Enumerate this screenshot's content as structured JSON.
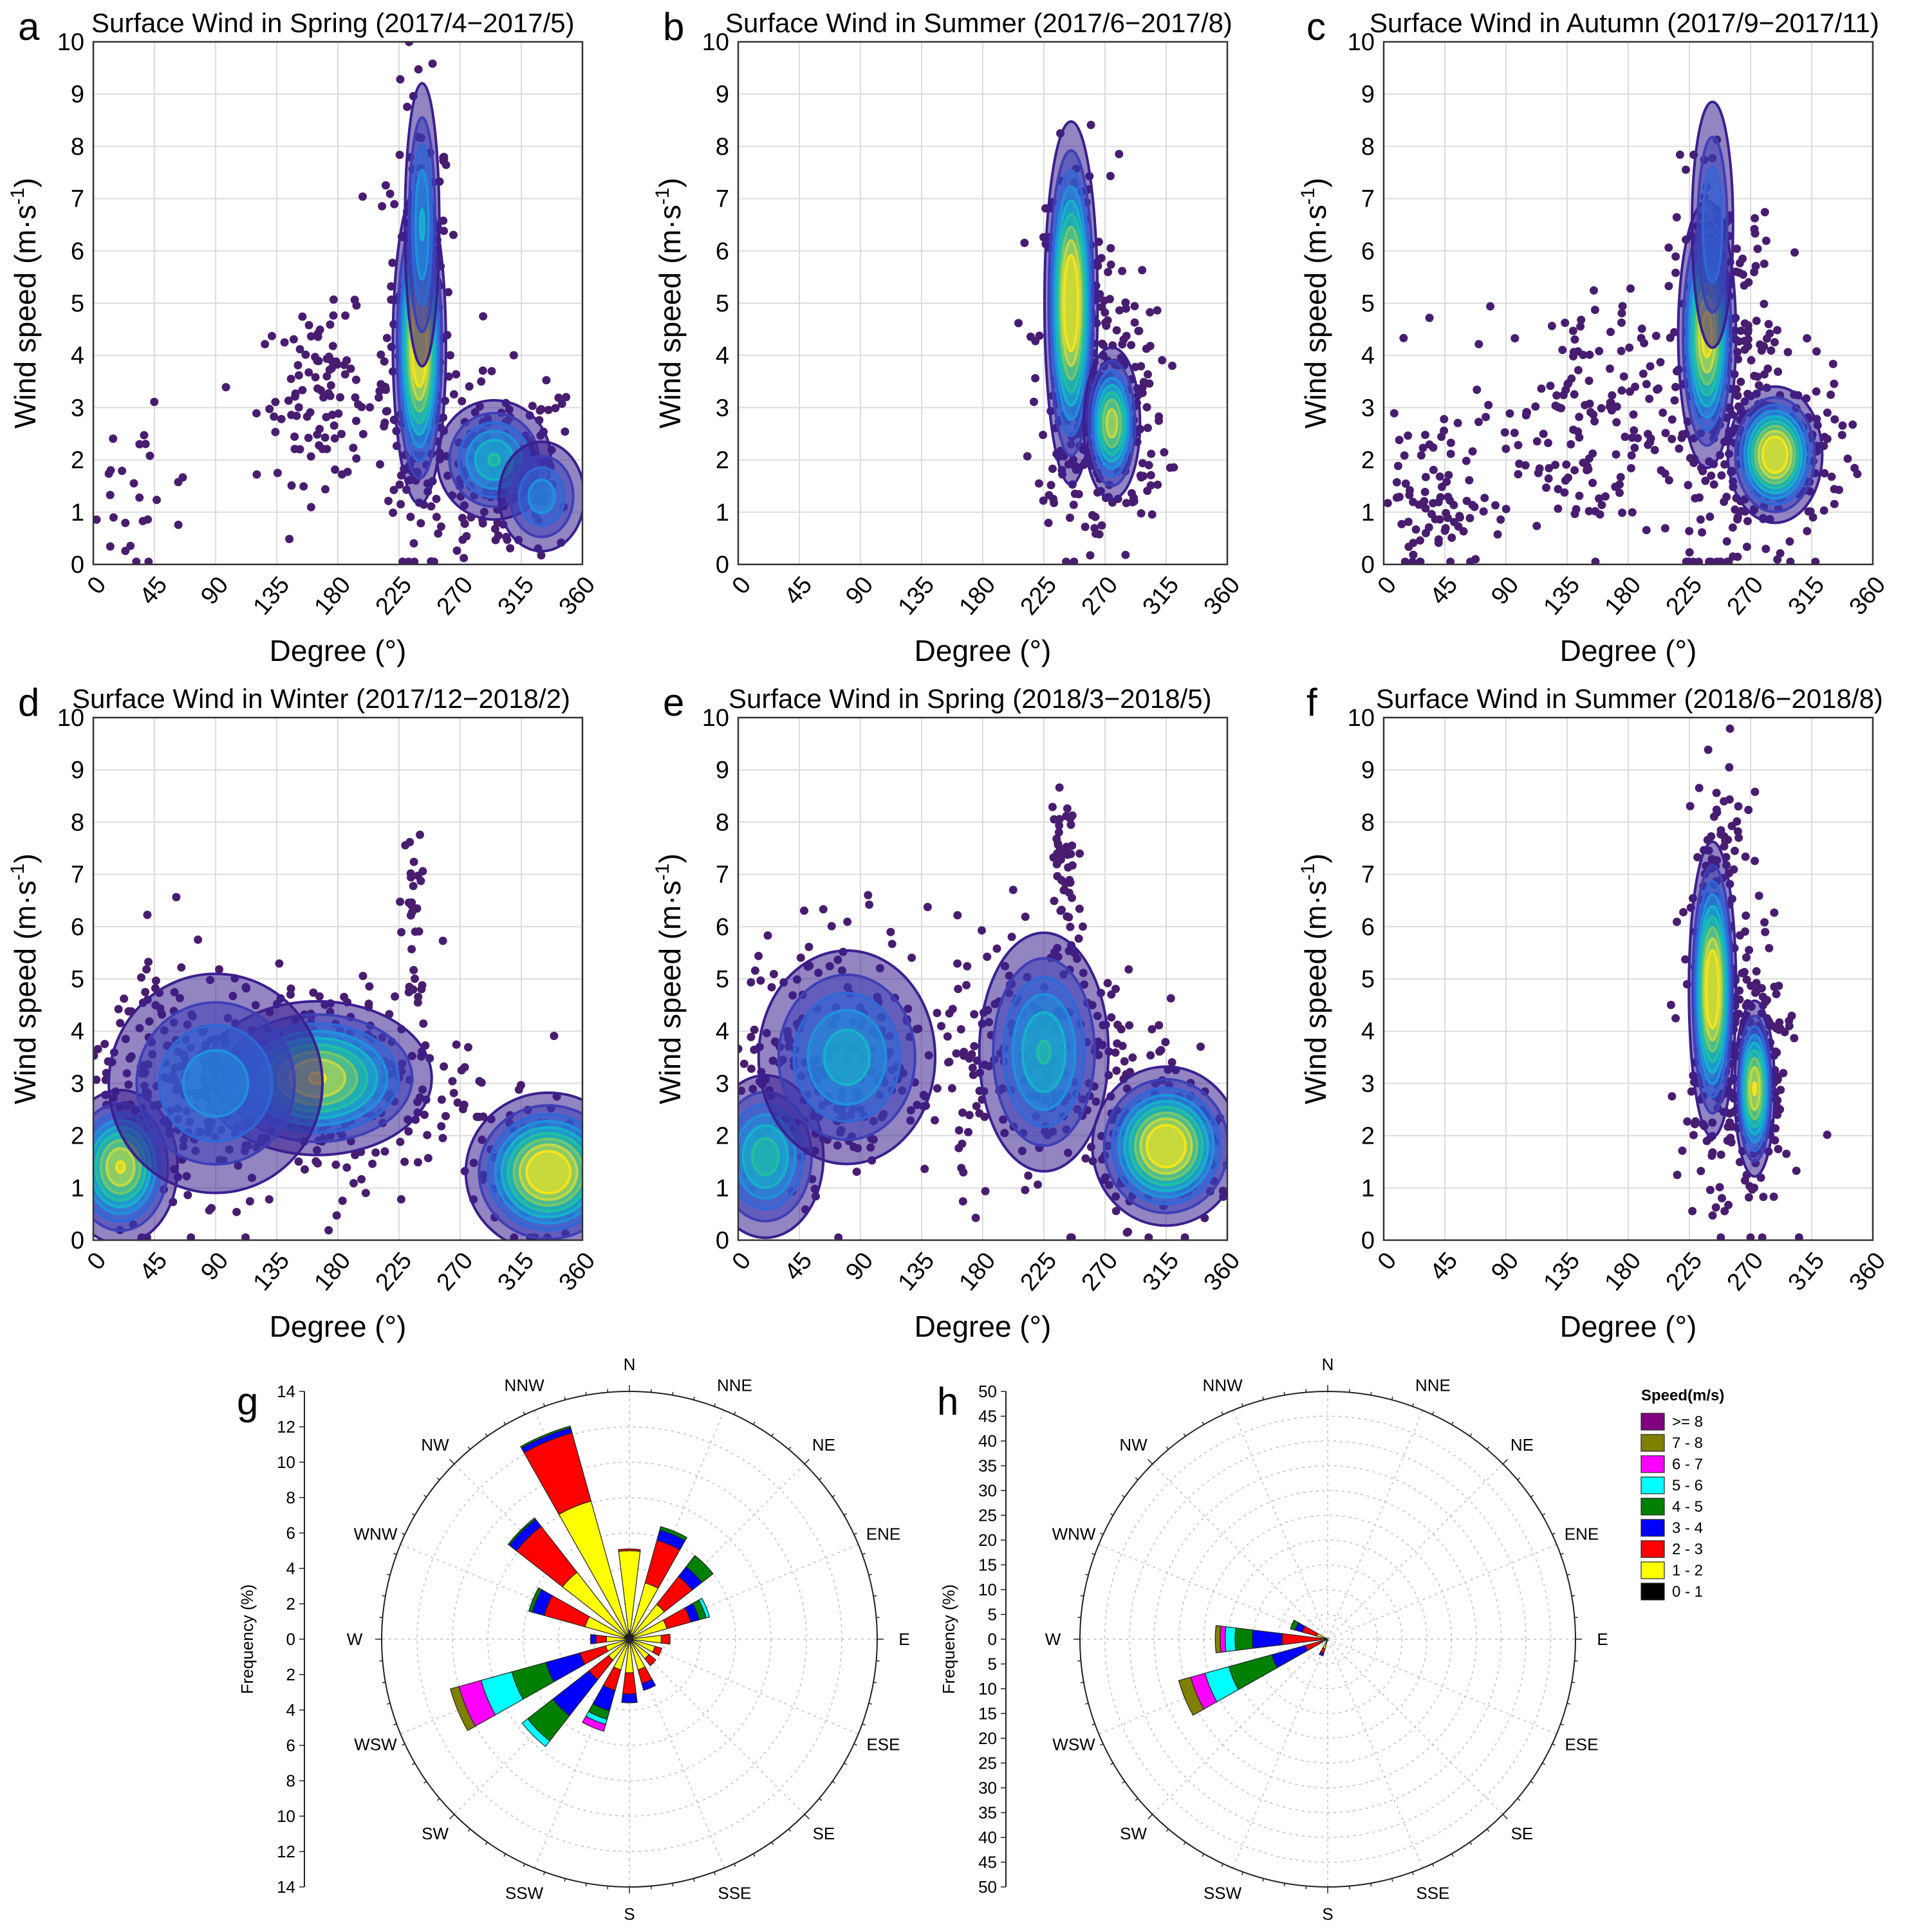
{
  "colors": {
    "point": "#481d6f",
    "density": [
      "#3b1f8f",
      "#3d3fb6",
      "#2f67d8",
      "#1f91dd",
      "#16b3c9",
      "#22c0a0",
      "#74c86b",
      "#c3d845",
      "#f6e41a"
    ],
    "speed_bins": [
      "#000000",
      "#ffff00",
      "#ff0000",
      "#0000ff",
      "#008000",
      "#00ffff",
      "#ff00ff",
      "#808000",
      "#800080"
    ]
  },
  "panels": [
    {
      "letter": "a",
      "title": "Surface Wind in Spring (2017/4−2017/5)"
    },
    {
      "letter": "b",
      "title": "Surface Wind in Summer (2017/6−2017/8)"
    },
    {
      "letter": "c",
      "title": "Surface Wind in Autumn (2017/9−2017/11)"
    },
    {
      "letter": "d",
      "title": "Surface Wind in Winter (2017/12−2018/2)"
    },
    {
      "letter": "e",
      "title": "Surface Wind in Spring (2018/3−2018/5)"
    },
    {
      "letter": "f",
      "title": "Surface Wind in Summer (2018/6−2018/8)"
    }
  ],
  "axis": {
    "xlabel": "Degree (°)",
    "ylabel_main": "Wind speed (m·s",
    "ylabel_sup": "-1",
    "ylabel_end": ")",
    "xticks": [
      "0",
      "45",
      "90",
      "135",
      "180",
      "225",
      "270",
      "315",
      "360"
    ],
    "yticks": [
      "0",
      "1",
      "2",
      "3",
      "4",
      "5",
      "6",
      "7",
      "8",
      "9",
      "10"
    ]
  },
  "roses": [
    {
      "letter": "g",
      "ylabel": "Frequency (%)",
      "ticks": [
        "14",
        "12",
        "10",
        "8",
        "6",
        "4",
        "2",
        "0",
        "2",
        "4",
        "6",
        "8",
        "10",
        "12",
        "14"
      ]
    },
    {
      "letter": "h",
      "ylabel": "Frequency (%)",
      "ticks": [
        "50",
        "45",
        "40",
        "35",
        "30",
        "25",
        "20",
        "15",
        "10",
        "5",
        "0",
        "5",
        "10",
        "15",
        "20",
        "25",
        "30",
        "35",
        "40",
        "45",
        "50"
      ]
    }
  ],
  "directions": [
    "N",
    "NNE",
    "NE",
    "ENE",
    "E",
    "ESE",
    "SE",
    "SSE",
    "S",
    "SSW",
    "SW",
    "WSW",
    "W",
    "WNW",
    "NW",
    "NNW"
  ],
  "legend": {
    "title": "Speed(m/s)",
    "items": [
      ">= 8",
      "7 - 8",
      "6 - 7",
      "5 - 6",
      "4 - 5",
      "3 - 4",
      "2 - 3",
      "1 - 2",
      "0 - 1"
    ]
  },
  "chart_data": [
    {
      "type": "scatter",
      "title": "Surface Wind in Spring (2017/4−2017/5)",
      "xlabel": "Degree (°)",
      "ylabel": "Wind speed (m·s-1)",
      "xlim": [
        0,
        360
      ],
      "ylim": [
        0,
        10
      ],
      "grid": true,
      "density_peaks": [
        {
          "x": 240,
          "y": 4.2,
          "sx": 9,
          "sy": 1.4,
          "w": 1.0
        },
        {
          "x": 242,
          "y": 6.5,
          "sx": 7,
          "sy": 1.5,
          "w": 0.45
        },
        {
          "x": 295,
          "y": 2.0,
          "sx": 22,
          "sy": 0.6,
          "w": 0.55
        },
        {
          "x": 330,
          "y": 1.3,
          "sx": 18,
          "sy": 0.6,
          "w": 0.4
        }
      ],
      "clusters": [
        {
          "x": 240,
          "y": 4.5,
          "sx": 12,
          "sy": 2.2,
          "n": 220
        },
        {
          "x": 170,
          "y": 3.2,
          "sx": 25,
          "sy": 0.8,
          "n": 110
        },
        {
          "x": 300,
          "y": 1.8,
          "sx": 30,
          "sy": 0.9,
          "n": 160
        },
        {
          "x": 30,
          "y": 1.2,
          "sx": 25,
          "sy": 0.8,
          "n": 30
        }
      ]
    },
    {
      "type": "scatter",
      "title": "Surface Wind in Summer (2017/6−2017/8)",
      "xlabel": "Degree (°)",
      "ylabel": "Wind speed (m·s-1)",
      "xlim": [
        0,
        360
      ],
      "ylim": [
        0,
        10
      ],
      "grid": true,
      "density_peaks": [
        {
          "x": 245,
          "y": 5.0,
          "sx": 9,
          "sy": 1.6,
          "w": 1.0
        },
        {
          "x": 275,
          "y": 2.7,
          "sx": 10,
          "sy": 0.7,
          "w": 0.8
        }
      ],
      "clusters": [
        {
          "x": 250,
          "y": 4.2,
          "sx": 15,
          "sy": 1.8,
          "n": 260
        },
        {
          "x": 275,
          "y": 2.8,
          "sx": 20,
          "sy": 1.0,
          "n": 180
        }
      ]
    },
    {
      "type": "scatter",
      "title": "Surface Wind in Autumn (2017/9−2017/11)",
      "xlabel": "Degree (°)",
      "ylabel": "Wind speed (m·s-1)",
      "xlim": [
        0,
        360
      ],
      "ylim": [
        0,
        10
      ],
      "grid": true,
      "density_peaks": [
        {
          "x": 238,
          "y": 4.4,
          "sx": 10,
          "sy": 1.2,
          "w": 0.9
        },
        {
          "x": 288,
          "y": 2.1,
          "sx": 16,
          "sy": 0.6,
          "w": 1.0
        },
        {
          "x": 242,
          "y": 6.5,
          "sx": 9,
          "sy": 1.4,
          "w": 0.35
        }
      ],
      "clusters": [
        {
          "x": 250,
          "y": 3.8,
          "sx": 20,
          "sy": 1.8,
          "n": 260
        },
        {
          "x": 290,
          "y": 2.0,
          "sx": 25,
          "sy": 0.8,
          "n": 180
        },
        {
          "x": 150,
          "y": 2.8,
          "sx": 45,
          "sy": 1.2,
          "n": 180
        },
        {
          "x": 30,
          "y": 1.2,
          "sx": 25,
          "sy": 0.8,
          "n": 90
        }
      ]
    },
    {
      "type": "scatter",
      "title": "Surface Wind in Winter (2017/12−2018/2)",
      "xlabel": "Degree (°)",
      "ylabel": "Wind speed (m·s-1)",
      "xlim": [
        0,
        360
      ],
      "ylim": [
        0,
        10
      ],
      "grid": true,
      "density_peaks": [
        {
          "x": 20,
          "y": 1.4,
          "sx": 20,
          "sy": 0.7,
          "w": 0.85
        },
        {
          "x": 165,
          "y": 3.1,
          "sx": 40,
          "sy": 0.7,
          "w": 0.85
        },
        {
          "x": 335,
          "y": 1.3,
          "sx": 28,
          "sy": 0.7,
          "w": 1.0
        },
        {
          "x": 90,
          "y": 3.0,
          "sx": 45,
          "sy": 1.2,
          "w": 0.4
        }
      ],
      "clusters": [
        {
          "x": 60,
          "y": 3.0,
          "sx": 40,
          "sy": 1.3,
          "n": 220
        },
        {
          "x": 170,
          "y": 3.0,
          "sx": 55,
          "sy": 1.0,
          "n": 250
        },
        {
          "x": 330,
          "y": 1.4,
          "sx": 25,
          "sy": 0.7,
          "n": 150
        },
        {
          "x": 235,
          "y": 5.8,
          "sx": 5,
          "sy": 1.0,
          "n": 30
        }
      ]
    },
    {
      "type": "scatter",
      "title": "Surface Wind in Spring (2018/3−2018/5)",
      "xlabel": "Degree (°)",
      "ylabel": "Wind speed (m·s-1)",
      "xlim": [
        0,
        360
      ],
      "ylim": [
        0,
        10
      ],
      "grid": true,
      "density_peaks": [
        {
          "x": 20,
          "y": 1.6,
          "sx": 22,
          "sy": 0.8,
          "w": 0.6
        },
        {
          "x": 315,
          "y": 1.8,
          "sx": 25,
          "sy": 0.7,
          "w": 1.0
        },
        {
          "x": 225,
          "y": 3.6,
          "sx": 25,
          "sy": 1.2,
          "w": 0.55
        },
        {
          "x": 80,
          "y": 3.5,
          "sx": 35,
          "sy": 1.1,
          "w": 0.5
        }
      ],
      "clusters": [
        {
          "x": 70,
          "y": 3.5,
          "sx": 40,
          "sy": 1.3,
          "n": 220
        },
        {
          "x": 220,
          "y": 3.5,
          "sx": 40,
          "sy": 1.3,
          "n": 220
        },
        {
          "x": 320,
          "y": 1.8,
          "sx": 25,
          "sy": 0.7,
          "n": 140
        },
        {
          "x": 240,
          "y": 7.0,
          "sx": 5,
          "sy": 1.0,
          "n": 50
        }
      ]
    },
    {
      "type": "scatter",
      "title": "Surface Wind in Summer (2018/6−2018/8)",
      "xlabel": "Degree (°)",
      "ylabel": "Wind speed (m·s-1)",
      "xlim": [
        0,
        360
      ],
      "ylim": [
        0,
        10
      ],
      "grid": true,
      "density_peaks": [
        {
          "x": 242,
          "y": 4.8,
          "sx": 8,
          "sy": 1.3,
          "w": 1.0
        },
        {
          "x": 273,
          "y": 2.9,
          "sx": 7,
          "sy": 0.8,
          "w": 0.85
        }
      ],
      "clusters": [
        {
          "x": 245,
          "y": 4.8,
          "sx": 12,
          "sy": 1.8,
          "n": 260
        },
        {
          "x": 275,
          "y": 3.2,
          "sx": 12,
          "sy": 1.3,
          "n": 200
        }
      ]
    },
    {
      "type": "rose",
      "bins": [
        ">= 8",
        "7 - 8",
        "6 - 7",
        "5 - 6",
        "4 - 5",
        "3 - 4",
        "2 - 3",
        "1 - 2",
        "0 - 1"
      ],
      "rmax": 14,
      "stacks": [
        {
          "dir": "N",
          "segs": [
            0.5,
            4.5,
            0.1
          ]
        },
        {
          "dir": "NNE",
          "segs": [
            0.3,
            3.0,
            2.5,
            0.6,
            0.2
          ]
        },
        {
          "dir": "NE",
          "segs": [
            0.3,
            2.2,
            2.0,
            0.7,
            0.8
          ]
        },
        {
          "dir": "ENE",
          "segs": [
            0.2,
            2.0,
            1.4,
            0.5,
            0.4,
            0.2
          ]
        },
        {
          "dir": "E",
          "segs": [
            0.2,
            1.6,
            0.5
          ]
        },
        {
          "dir": "ESE",
          "segs": [
            0.2,
            1.3,
            0.4
          ]
        },
        {
          "dir": "SE",
          "segs": [
            0.2,
            1.2,
            0.5
          ]
        },
        {
          "dir": "SSE",
          "segs": [
            0.2,
            1.6,
            0.8,
            0.4
          ]
        },
        {
          "dir": "S",
          "segs": [
            0.2,
            1.7,
            1.2,
            0.5
          ]
        },
        {
          "dir": "SSW",
          "segs": [
            0.2,
            1.6,
            1.2,
            1.2,
            0.5,
            0.3,
            0.4
          ]
        },
        {
          "dir": "SW",
          "segs": [
            0.2,
            1.3,
            1.4,
            2.6,
            1.8,
            0.4
          ]
        },
        {
          "dir": "WSW",
          "segs": [
            0.2,
            1.2,
            1.5,
            2.0,
            2.0,
            1.8,
            1.3,
            0.5
          ]
        },
        {
          "dir": "W",
          "segs": [
            0.2,
            1.1,
            0.6,
            0.3
          ]
        },
        {
          "dir": "WNW",
          "segs": [
            0.3,
            2.3,
            2.4,
            0.7,
            0.2
          ]
        },
        {
          "dir": "NW",
          "segs": [
            0.3,
            4.5,
            3.3,
            0.5,
            0.1
          ]
        },
        {
          "dir": "NNW",
          "segs": [
            0.3,
            7.8,
            4.0,
            0.3,
            0.1
          ]
        }
      ]
    },
    {
      "type": "rose",
      "bins": [
        ">= 8",
        "7 - 8",
        "6 - 7",
        "5 - 6",
        "4 - 5",
        "3 - 4",
        "2 - 3",
        "1 - 2",
        "0 - 1"
      ],
      "rmax": 50,
      "stacks": [
        {
          "dir": "SSW",
          "segs": [
            0.5,
            1.5,
            1.0,
            0.5
          ]
        },
        {
          "dir": "WSW",
          "segs": [
            0.2,
            1.0,
            3.5,
            7.0,
            9.0,
            5.0,
            3.0,
            2.5
          ]
        },
        {
          "dir": "W",
          "segs": [
            0.2,
            1.0,
            8.0,
            6.0,
            3.5,
            2.0,
            1.0,
            1.0
          ]
        },
        {
          "dir": "WNW",
          "segs": [
            0.3,
            2.0,
            3.0,
            1.5,
            1.0
          ]
        }
      ]
    }
  ]
}
